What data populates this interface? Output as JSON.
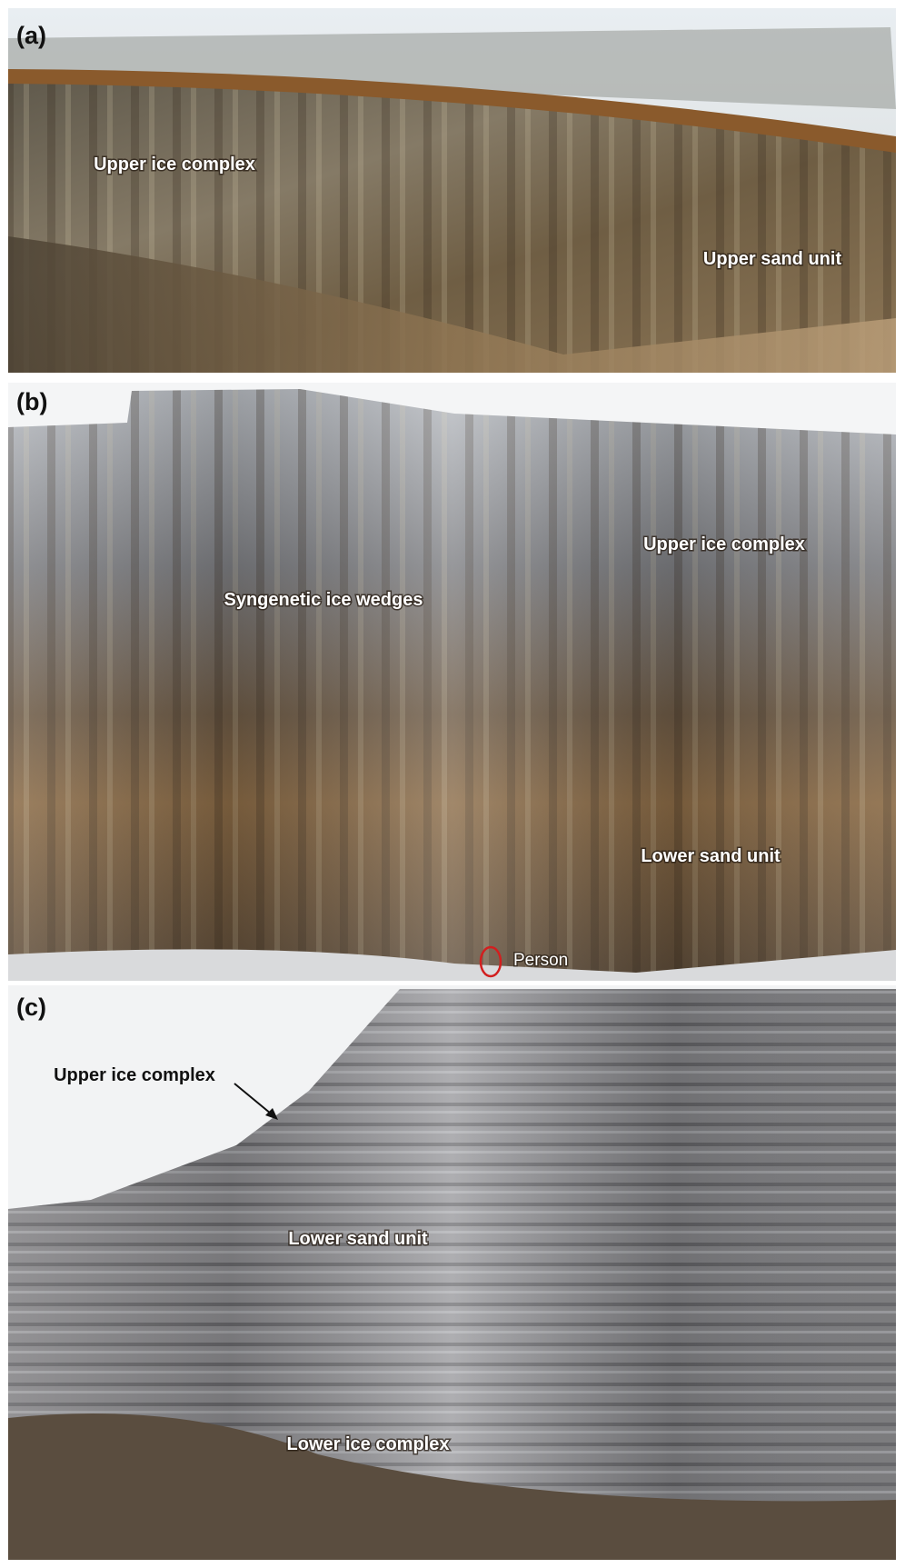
{
  "panels": [
    {
      "label": "(a)",
      "annotations": [
        "Upper ice complex",
        "Upper sand unit"
      ]
    },
    {
      "label": "(b)",
      "annotations": [
        "Syngenetic ice wedges",
        "Upper ice complex",
        "Lower sand unit",
        "Person"
      ]
    },
    {
      "label": "(c)",
      "annotations": [
        "Upper ice complex",
        "Lower sand unit",
        "Lower ice complex"
      ]
    }
  ]
}
